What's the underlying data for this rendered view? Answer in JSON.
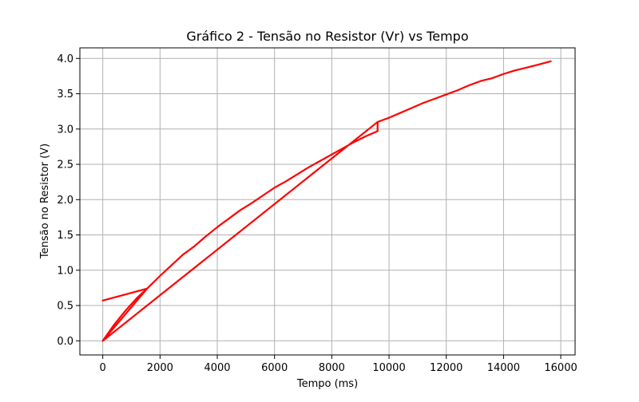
{
  "chart_data": {
    "type": "line",
    "title": "Gráfico 2 - Tensão no Resistor (Vr) vs Tempo",
    "xlabel": "Tempo (ms)",
    "ylabel": "Tensão no Resistor (V)",
    "xlim": [
      -800,
      16500
    ],
    "ylim": [
      -0.2,
      4.15
    ],
    "xticks": [
      0,
      2000,
      4000,
      6000,
      8000,
      10000,
      12000,
      14000,
      16000
    ],
    "xtick_labels": [
      "0",
      "2000",
      "4000",
      "6000",
      "8000",
      "10000",
      "12000",
      "14000",
      "16000"
    ],
    "yticks": [
      0.0,
      0.5,
      1.0,
      1.5,
      2.0,
      2.5,
      3.0,
      3.5,
      4.0
    ],
    "ytick_labels": [
      "0.0",
      "0.5",
      "1.0",
      "1.5",
      "2.0",
      "2.5",
      "3.0",
      "3.5",
      "4.0"
    ],
    "grid": true,
    "colors": {
      "series": "#ff0000",
      "grid": "#b0b0b0",
      "axes": "#000000"
    },
    "series": [
      {
        "x": [
          0,
          1550,
          0,
          400,
          800,
          1200,
          1600,
          2000,
          2400,
          2800,
          3200,
          3600,
          4000,
          4400,
          4800,
          5200,
          5600,
          6000,
          6400,
          6800,
          7200,
          7600,
          8000,
          8400,
          8800,
          9200,
          9600,
          9600,
          0,
          0,
          9600,
          10000,
          10400,
          10800,
          11200,
          11600,
          12000,
          12400,
          12800,
          13200,
          13600,
          14000,
          14400,
          14800,
          15200,
          15650
        ],
        "y": [
          0.57,
          0.74,
          0.0,
          0.23,
          0.43,
          0.61,
          0.76,
          0.92,
          1.07,
          1.22,
          1.34,
          1.48,
          1.61,
          1.73,
          1.85,
          1.95,
          2.06,
          2.17,
          2.26,
          2.36,
          2.46,
          2.55,
          2.64,
          2.73,
          2.82,
          2.9,
          2.97,
          3.1,
          0.0,
          0.0,
          3.1,
          3.16,
          3.23,
          3.3,
          3.37,
          3.43,
          3.49,
          3.55,
          3.62,
          3.68,
          3.72,
          3.78,
          3.83,
          3.87,
          3.91,
          3.96
        ]
      }
    ]
  }
}
